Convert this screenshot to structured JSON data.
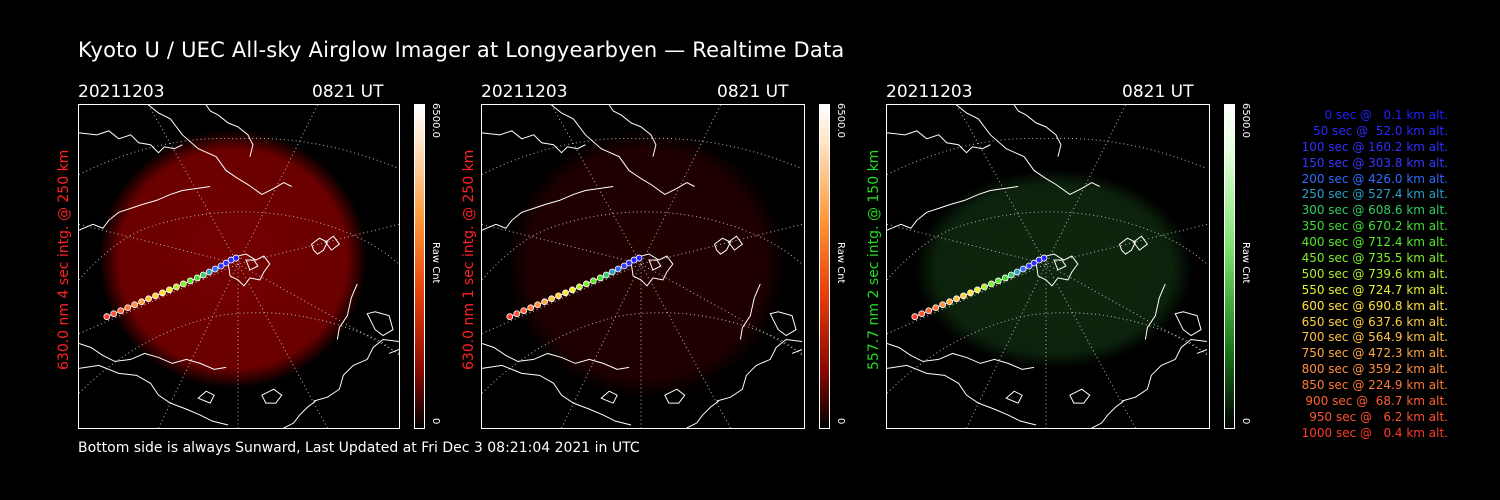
{
  "title": "Kyoto U / UEC All-sky Airglow Imager at Longyearbyen — Realtime Data",
  "footer": "Bottom side is always Sunward, Last Updated at Fri Dec  3 08:21:04 2021 in UTC",
  "panels": [
    {
      "date": "20211203",
      "time": "0821 UT",
      "ylabel": "630.0 nm 4 sec intg. @ 250 km",
      "color": "#ff2222",
      "glow": "#8a0000",
      "glow_strength": 0.85,
      "cbar_max": "6500.0",
      "cbar_min": "0",
      "cbar_unit": "Raw Cnt"
    },
    {
      "date": "20211203",
      "time": "0821 UT",
      "ylabel": "630.0 nm 1 sec intg. @ 250 km",
      "color": "#ff2222",
      "glow": "#2a0000",
      "glow_strength": 0.8,
      "cbar_max": "6500.0",
      "cbar_min": "0",
      "cbar_unit": "Raw Cnt"
    },
    {
      "date": "20211203",
      "time": "0821 UT",
      "ylabel": "557.7 nm 2 sec intg. @ 150 km",
      "color": "#22dd22",
      "glow": "#0f2a0f",
      "glow_strength": 0.9,
      "cbar_max": "6500.0",
      "cbar_min": "0",
      "cbar_unit": "Raw Cnt"
    }
  ],
  "legend": [
    {
      "text": "0 sec @   0.1 km alt.",
      "color": "#2020ff"
    },
    {
      "text": "50 sec @  52.0 km alt.",
      "color": "#2a2aff"
    },
    {
      "text": "100 sec @ 160.2 km alt.",
      "color": "#3030ff"
    },
    {
      "text": "150 sec @ 303.8 km alt.",
      "color": "#3838ff"
    },
    {
      "text": "200 sec @ 426.0 km alt.",
      "color": "#2d6cff"
    },
    {
      "text": "250 sec @ 527.4 km alt.",
      "color": "#2aa0c8"
    },
    {
      "text": "300 sec @ 608.6 km alt.",
      "color": "#33cc66"
    },
    {
      "text": "350 sec @ 670.2 km alt.",
      "color": "#44dd33"
    },
    {
      "text": "400 sec @ 712.4 km alt.",
      "color": "#55e82a"
    },
    {
      "text": "450 sec @ 735.5 km alt.",
      "color": "#80f02a"
    },
    {
      "text": "500 sec @ 739.6 km alt.",
      "color": "#b0f030"
    },
    {
      "text": "550 sec @ 724.7 km alt.",
      "color": "#e8f030"
    },
    {
      "text": "600 sec @ 690.8 km alt.",
      "color": "#ffe040"
    },
    {
      "text": "650 sec @ 637.6 km alt.",
      "color": "#ffd040"
    },
    {
      "text": "700 sec @ 564.9 km alt.",
      "color": "#ffc040"
    },
    {
      "text": "750 sec @ 472.3 km alt.",
      "color": "#ffa840"
    },
    {
      "text": "800 sec @ 359.2 km alt.",
      "color": "#ff9040"
    },
    {
      "text": "850 sec @ 224.9 km alt.",
      "color": "#ff7838"
    },
    {
      "text": "900 sec @  68.7 km alt.",
      "color": "#ff6030"
    },
    {
      "text": "950 sec @   6.2 km alt.",
      "color": "#ff5030"
    },
    {
      "text": "1000 sec @   0.4 km alt.",
      "color": "#ff3a2a"
    }
  ]
}
